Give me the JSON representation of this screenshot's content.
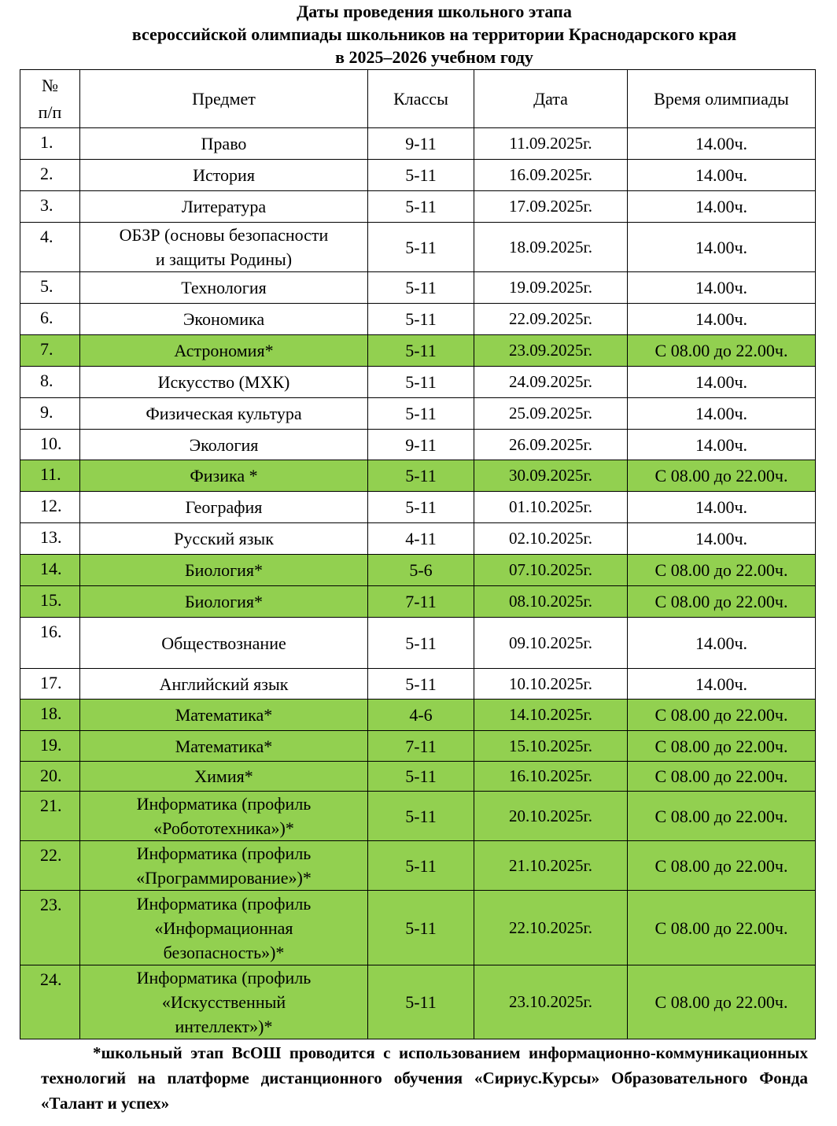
{
  "header": {
    "lines": [
      "Даты  проведения школьного этапа",
      "всероссийской олимпиады школьников на территории Краснодарского края",
      "в 2025–2026  учебном году"
    ]
  },
  "table": {
    "columns": [
      "№\nп/п",
      "Предмет",
      "Классы",
      "Дата",
      "Время олимпиады"
    ],
    "highlight_color": "#92d050",
    "rows": [
      {
        "cells": [
          "1.",
          "Право",
          "9-11",
          "11.09.2025г.",
          "14.00ч."
        ]
      },
      {
        "cells": [
          "2.",
          "История",
          "5-11",
          "16.09.2025г.",
          "14.00ч."
        ]
      },
      {
        "cells": [
          "3.",
          "Литература",
          "5-11",
          "17.09.2025г.",
          "14.00ч."
        ]
      },
      {
        "cells": [
          "4.",
          "ОБЗР (основы безопасности\nи защиты Родины)",
          "5-11",
          "18.09.2025г.",
          "14.00ч."
        ]
      },
      {
        "cells": [
          "5.",
          "Технология",
          "5-11",
          "19.09.2025г.",
          "14.00ч."
        ]
      },
      {
        "cells": [
          "6.",
          "Экономика",
          "5-11",
          "22.09.2025г.",
          "14.00ч."
        ]
      },
      {
        "cells": [
          "7.",
          "Астрономия*",
          "5-11",
          "23.09.2025г.",
          "С 08.00 до 22.00ч."
        ],
        "highlighted": true
      },
      {
        "cells": [
          "8.",
          "Искусство (МХК)",
          "5-11",
          "24.09.2025г.",
          "14.00ч."
        ]
      },
      {
        "cells": [
          "9.",
          "Физическая культура",
          "5-11",
          "25.09.2025г.",
          "14.00ч."
        ]
      },
      {
        "cells": [
          "10.",
          "Экология",
          "9-11",
          "26.09.2025г.",
          "14.00ч."
        ]
      },
      {
        "cells": [
          "11.",
          "Физика *",
          "5-11",
          "30.09.2025г.",
          "С 08.00 до 22.00ч."
        ],
        "highlighted": true
      },
      {
        "cells": [
          "12.",
          "География",
          "5-11",
          "01.10.2025г.",
          "14.00ч."
        ]
      },
      {
        "cells": [
          "13.",
          "Русский язык",
          "4-11",
          "02.10.2025г.",
          "14.00ч."
        ]
      },
      {
        "cells": [
          "14.",
          "Биология*",
          "5-6",
          "07.10.2025г.",
          "С 08.00 до 22.00ч."
        ],
        "highlighted": true
      },
      {
        "cells": [
          "15.",
          "Биология*",
          "7-11",
          "08.10.2025г.",
          "С 08.00 до 22.00ч."
        ],
        "highlighted": true
      },
      {
        "cells": [
          "16.",
          "Обществознание",
          "5-11",
          "09.10.2025г.",
          "14.00ч."
        ]
      },
      {
        "cells": [
          "17.",
          "Английский язык",
          "5-11",
          "10.10.2025г.",
          "14.00ч."
        ]
      },
      {
        "cells": [
          "18.",
          "Математика*",
          "4-6",
          "14.10.2025г.",
          "С 08.00 до 22.00ч."
        ],
        "highlighted": true
      },
      {
        "cells": [
          "19.",
          "Математика*",
          "7-11",
          "15.10.2025г.",
          "С 08.00 до 22.00ч."
        ],
        "highlighted": true
      },
      {
        "cells": [
          "20.",
          "Химия*",
          "5-11",
          "16.10.2025г.",
          "С 08.00 до 22.00ч."
        ],
        "highlighted": true
      },
      {
        "cells": [
          "21.",
          "Информатика (профиль\n«Робототехника»)*",
          "5-11",
          "20.10.2025г.",
          "С 08.00 до 22.00ч."
        ],
        "highlighted": true
      },
      {
        "cells": [
          "22.",
          "Информатика (профиль\n«Программирование»)*",
          "5-11",
          "21.10.2025г.",
          "С 08.00 до 22.00ч."
        ],
        "highlighted": true
      },
      {
        "cells": [
          "23.",
          "Информатика (профиль\n«Информационная\nбезопасность»)*",
          "5-11",
          "22.10.2025г.",
          "С 08.00 до 22.00ч."
        ],
        "highlighted": true
      },
      {
        "cells": [
          "24.",
          "Информатика (профиль\n«Искусственный\nинтеллект»)*",
          "5-11",
          "23.10.2025г.",
          "С 08.00 до 22.00ч."
        ],
        "highlighted": true
      }
    ]
  },
  "footnote": "*школьный этап ВсОШ проводится с использованием информационно-коммуникационных технологий на платформе дистанционного обучения «Сириус.Курсы» Образовательного Фонда «Талант и успех»"
}
